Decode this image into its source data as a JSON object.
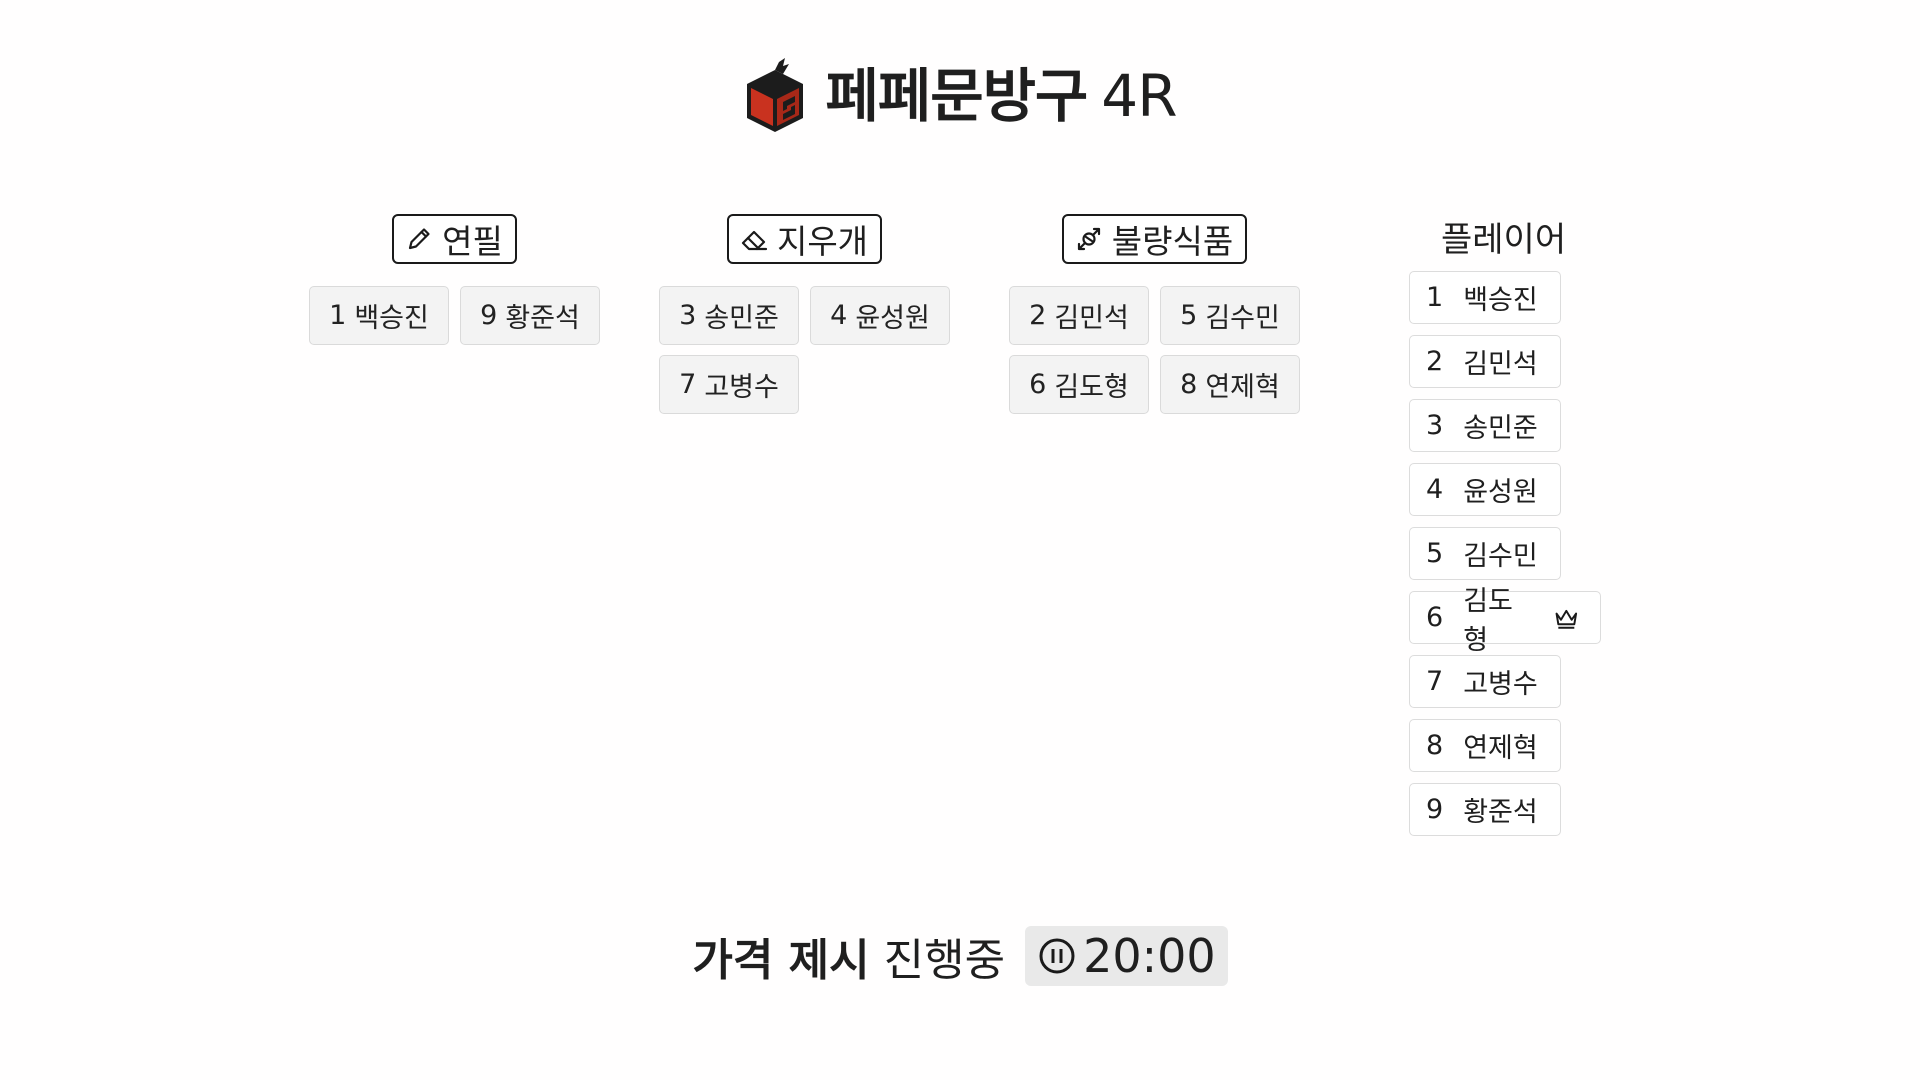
{
  "header": {
    "title": "페페문방구",
    "round": "4R"
  },
  "categories": [
    {
      "icon": "pencil-icon",
      "label": "연필",
      "players": [
        {
          "number": "1",
          "name": "백승진"
        },
        {
          "number": "9",
          "name": "황준석"
        }
      ]
    },
    {
      "icon": "eraser-icon",
      "label": "지우개",
      "players": [
        {
          "number": "3",
          "name": "송민준"
        },
        {
          "number": "4",
          "name": "윤성원"
        },
        {
          "number": "7",
          "name": "고병수"
        }
      ]
    },
    {
      "icon": "candy-icon",
      "label": "불량식품",
      "players": [
        {
          "number": "2",
          "name": "김민석"
        },
        {
          "number": "5",
          "name": "김수민"
        },
        {
          "number": "6",
          "name": "김도형"
        },
        {
          "number": "8",
          "name": "연제혁"
        }
      ]
    }
  ],
  "players": {
    "title": "플레이어",
    "list": [
      {
        "number": "1",
        "name": "백승진"
      },
      {
        "number": "2",
        "name": "김민석"
      },
      {
        "number": "3",
        "name": "송민준"
      },
      {
        "number": "4",
        "name": "윤성원"
      },
      {
        "number": "5",
        "name": "김수민"
      },
      {
        "number": "6",
        "name": "김도형",
        "icon": "crown-icon"
      },
      {
        "number": "7",
        "name": "고병수"
      },
      {
        "number": "8",
        "name": "연제혁"
      },
      {
        "number": "9",
        "name": "황준석"
      }
    ]
  },
  "status": {
    "label": "가격 제시",
    "state": "진행중",
    "timer_icon": "pause-circle-icon",
    "timer": "20:00"
  }
}
